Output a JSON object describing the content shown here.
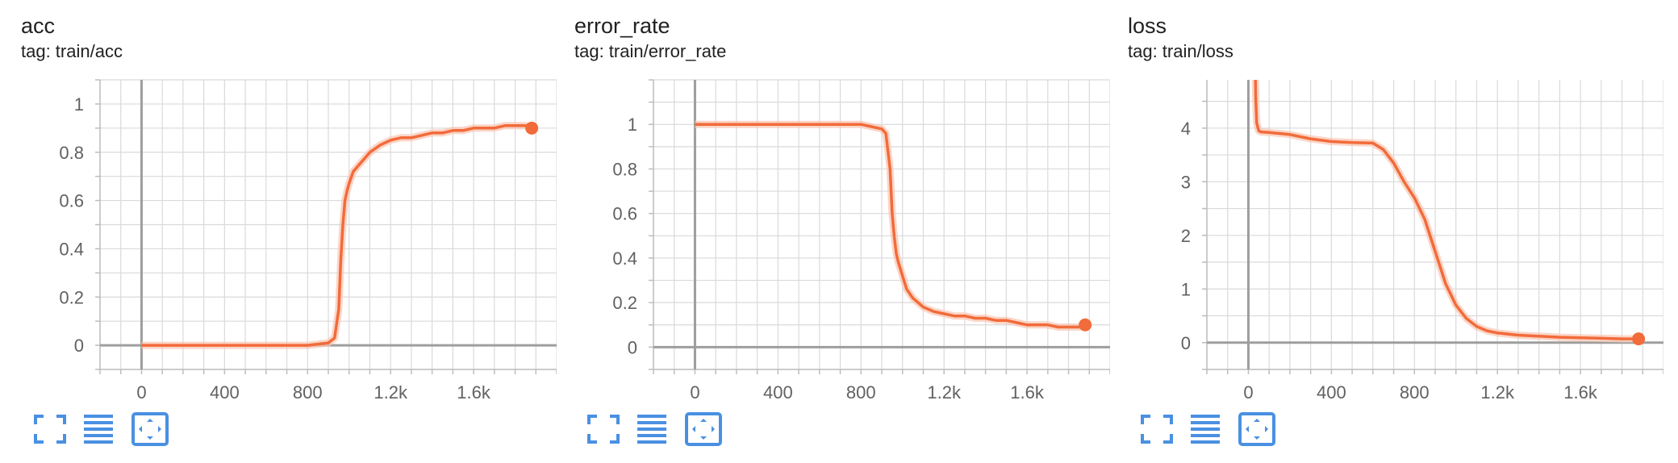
{
  "colors": {
    "accent": "#f26b3a",
    "smooth_raw": "#f9c4b0",
    "grid": "#dadada",
    "axis": "#9e9e9e",
    "text": "#212121",
    "tick_text": "#616161",
    "icon": "#4a90e2"
  },
  "toolbar_icons": [
    "fullscreen-icon",
    "data-table-icon",
    "fit-domain-icon"
  ],
  "chart_data": [
    {
      "type": "line",
      "title": "acc",
      "tag": "tag: train/acc",
      "xlim": [
        -100,
        1000000
      ],
      "ylim": [
        -0.1,
        1.1
      ],
      "x_ticks": [
        0,
        400,
        800,
        1200,
        1600
      ],
      "x_tick_labels": [
        "0",
        "400",
        "800",
        "1.2k",
        "1.6k"
      ],
      "y_ticks": [
        0,
        0.2,
        0.4,
        0.6,
        0.8,
        1
      ],
      "y_tick_labels": [
        "0",
        "0.2",
        "0.4",
        "0.6",
        "0.8",
        "1"
      ],
      "grid": true,
      "series": [
        {
          "x": [
            0,
            100,
            200,
            300,
            400,
            500,
            600,
            700,
            800,
            850,
            900,
            930,
            950,
            960,
            970,
            980,
            990,
            1000,
            1020,
            1050,
            1100,
            1150,
            1200,
            1250,
            1300,
            1350,
            1400,
            1450,
            1500,
            1550,
            1600,
            1650,
            1700,
            1750,
            1800,
            1850,
            1880
          ],
          "y": [
            0,
            0,
            0,
            0,
            0,
            0,
            0,
            0,
            0,
            0.005,
            0.01,
            0.03,
            0.15,
            0.35,
            0.5,
            0.6,
            0.64,
            0.67,
            0.72,
            0.75,
            0.8,
            0.83,
            0.85,
            0.86,
            0.86,
            0.87,
            0.88,
            0.88,
            0.89,
            0.89,
            0.9,
            0.9,
            0.9,
            0.91,
            0.91,
            0.91,
            0.9
          ]
        }
      ]
    },
    {
      "type": "line",
      "title": "error_rate",
      "tag": "tag: train/error_rate",
      "xlim": [
        -200,
        2000
      ],
      "ylim": [
        -0.1,
        1.2
      ],
      "x_ticks": [
        0,
        400,
        800,
        1200,
        1600
      ],
      "x_tick_labels": [
        "0",
        "400",
        "800",
        "1.2k",
        "1.6k"
      ],
      "y_ticks": [
        0,
        0.2,
        0.4,
        0.6,
        0.8,
        1
      ],
      "y_tick_labels": [
        "0",
        "0.2",
        "0.4",
        "0.6",
        "0.8",
        "1"
      ],
      "grid": true,
      "series": [
        {
          "x": [
            0,
            100,
            200,
            300,
            400,
            500,
            600,
            700,
            800,
            850,
            900,
            920,
            940,
            950,
            960,
            970,
            980,
            990,
            1000,
            1020,
            1050,
            1100,
            1150,
            1200,
            1250,
            1300,
            1350,
            1400,
            1450,
            1500,
            1550,
            1600,
            1650,
            1700,
            1750,
            1800,
            1850,
            1880
          ],
          "y": [
            1,
            1,
            1,
            1,
            1,
            1,
            1,
            1,
            1,
            0.99,
            0.98,
            0.96,
            0.8,
            0.6,
            0.5,
            0.42,
            0.38,
            0.35,
            0.32,
            0.26,
            0.22,
            0.18,
            0.16,
            0.15,
            0.14,
            0.14,
            0.13,
            0.13,
            0.12,
            0.12,
            0.11,
            0.1,
            0.1,
            0.1,
            0.09,
            0.09,
            0.09,
            0.1
          ]
        }
      ]
    },
    {
      "type": "line",
      "title": "loss",
      "tag": "tag: train/loss",
      "xlim": [
        -200,
        2000
      ],
      "ylim": [
        -0.5,
        4.9
      ],
      "x_ticks": [
        0,
        400,
        800,
        1200,
        1600
      ],
      "x_tick_labels": [
        "0",
        "400",
        "800",
        "1.2k",
        "1.6k"
      ],
      "y_ticks": [
        0,
        1,
        2,
        3,
        4
      ],
      "y_tick_labels": [
        "0",
        "1",
        "2",
        "3",
        "4"
      ],
      "grid": true,
      "series": [
        {
          "x": [
            30,
            35,
            40,
            50,
            60,
            100,
            200,
            300,
            400,
            500,
            600,
            650,
            700,
            750,
            800,
            850,
            900,
            950,
            1000,
            1050,
            1100,
            1150,
            1200,
            1300,
            1400,
            1500,
            1600,
            1700,
            1800,
            1880
          ],
          "y": [
            6,
            4.6,
            4.1,
            3.95,
            3.93,
            3.92,
            3.88,
            3.8,
            3.75,
            3.73,
            3.72,
            3.6,
            3.35,
            3.0,
            2.7,
            2.3,
            1.7,
            1.1,
            0.7,
            0.45,
            0.3,
            0.22,
            0.18,
            0.14,
            0.12,
            0.1,
            0.09,
            0.08,
            0.07,
            0.07
          ]
        }
      ]
    }
  ]
}
